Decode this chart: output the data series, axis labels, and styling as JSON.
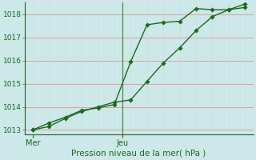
{
  "background_color": "#cce8e8",
  "grid_color_h": "#dda0a0",
  "grid_color_v": "#ccdcdc",
  "line_color": "#1a6b1a",
  "xlabel": "Pression niveau de la mer( hPa )",
  "ylim": [
    1012.8,
    1018.5
  ],
  "yticks": [
    1013,
    1014,
    1015,
    1016,
    1017,
    1018
  ],
  "line1_x": [
    0,
    1,
    2,
    3,
    4,
    5,
    6,
    7,
    8,
    9,
    10,
    11,
    12,
    13
  ],
  "line1_y": [
    1013.0,
    1013.3,
    1013.55,
    1013.85,
    1013.95,
    1014.1,
    1015.95,
    1017.55,
    1017.65,
    1017.7,
    1018.25,
    1018.2,
    1018.2,
    1018.3
  ],
  "line2_x": [
    0,
    1,
    2,
    3,
    4,
    5,
    6,
    7,
    8,
    9,
    10,
    11,
    12,
    13
  ],
  "line2_y": [
    1013.0,
    1013.15,
    1013.5,
    1013.8,
    1014.0,
    1014.2,
    1014.3,
    1015.1,
    1015.9,
    1016.55,
    1017.3,
    1017.9,
    1018.2,
    1018.45
  ],
  "vline_x": 5.5,
  "xlim": [
    -0.5,
    13.5
  ],
  "mer_x": 0,
  "jeu_x": 5.5,
  "xlabel_fontsize": 7.5,
  "ytick_fontsize": 6.5,
  "xtick_fontsize": 7.0
}
